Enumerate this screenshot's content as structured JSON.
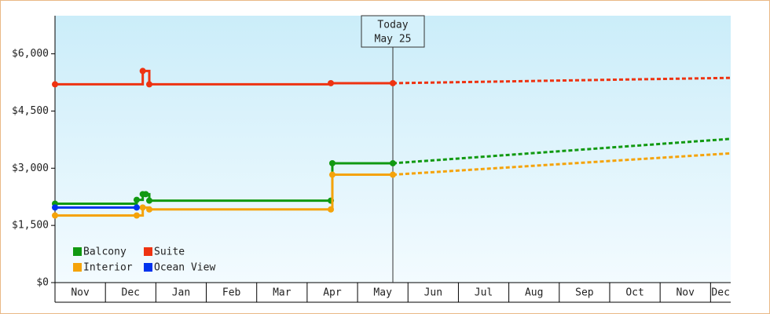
{
  "chart_data": {
    "type": "step",
    "xlim": [
      0,
      13.4
    ],
    "xticks": [
      {
        "value": 0,
        "label": "Nov"
      },
      {
        "value": 1,
        "label": "Dec"
      },
      {
        "value": 2,
        "label": "Jan"
      },
      {
        "value": 3,
        "label": "Feb"
      },
      {
        "value": 4,
        "label": "Mar"
      },
      {
        "value": 5,
        "label": "Apr"
      },
      {
        "value": 6,
        "label": "May"
      },
      {
        "value": 7,
        "label": "Jun"
      },
      {
        "value": 8,
        "label": "Jul"
      },
      {
        "value": 9,
        "label": "Aug"
      },
      {
        "value": 10,
        "label": "Sep"
      },
      {
        "value": 11,
        "label": "Oct"
      },
      {
        "value": 12,
        "label": "Nov"
      },
      {
        "value": 13,
        "label": "Dec"
      }
    ],
    "ylim": [
      0,
      7000
    ],
    "yticks": [
      {
        "value": 0,
        "label": "$0"
      },
      {
        "value": 1500,
        "label": "$1,500"
      },
      {
        "value": 3000,
        "label": "$3,000"
      },
      {
        "value": 4500,
        "label": "$4,500"
      },
      {
        "value": 6000,
        "label": "$6,000"
      }
    ],
    "today": {
      "x": 6.7,
      "label": "Today",
      "date": "May 25"
    },
    "series": [
      {
        "name": "Balcony",
        "color": "#119911",
        "x": [
          0,
          1.62,
          1.74,
          1.8,
          1.87,
          5.47,
          5.5,
          6.7
        ],
        "values": [
          2070,
          2170,
          2320,
          2320,
          2150,
          2150,
          3130,
          3130
        ],
        "forecast_x": [
          6.7,
          13.4
        ],
        "forecast_values": [
          3130,
          3770
        ]
      },
      {
        "name": "Suite",
        "color": "#ee3311",
        "x": [
          0,
          1.74,
          1.87,
          5.47,
          6.7
        ],
        "values": [
          5200,
          5550,
          5200,
          5230,
          5230
        ],
        "forecast_x": [
          6.7,
          13.4
        ],
        "forecast_values": [
          5230,
          5370
        ]
      },
      {
        "name": "Interior",
        "color": "#f5a30a",
        "x": [
          0,
          1.62,
          1.74,
          1.87,
          5.47,
          5.5,
          6.7
        ],
        "values": [
          1760,
          1760,
          1970,
          1920,
          1920,
          2830,
          2830
        ],
        "forecast_x": [
          6.7,
          13.4
        ],
        "forecast_values": [
          2830,
          3390
        ]
      },
      {
        "name": "Ocean View",
        "color": "#0033ee",
        "x": [
          0,
          1.62
        ],
        "values": [
          1970,
          1970
        ]
      }
    ]
  }
}
